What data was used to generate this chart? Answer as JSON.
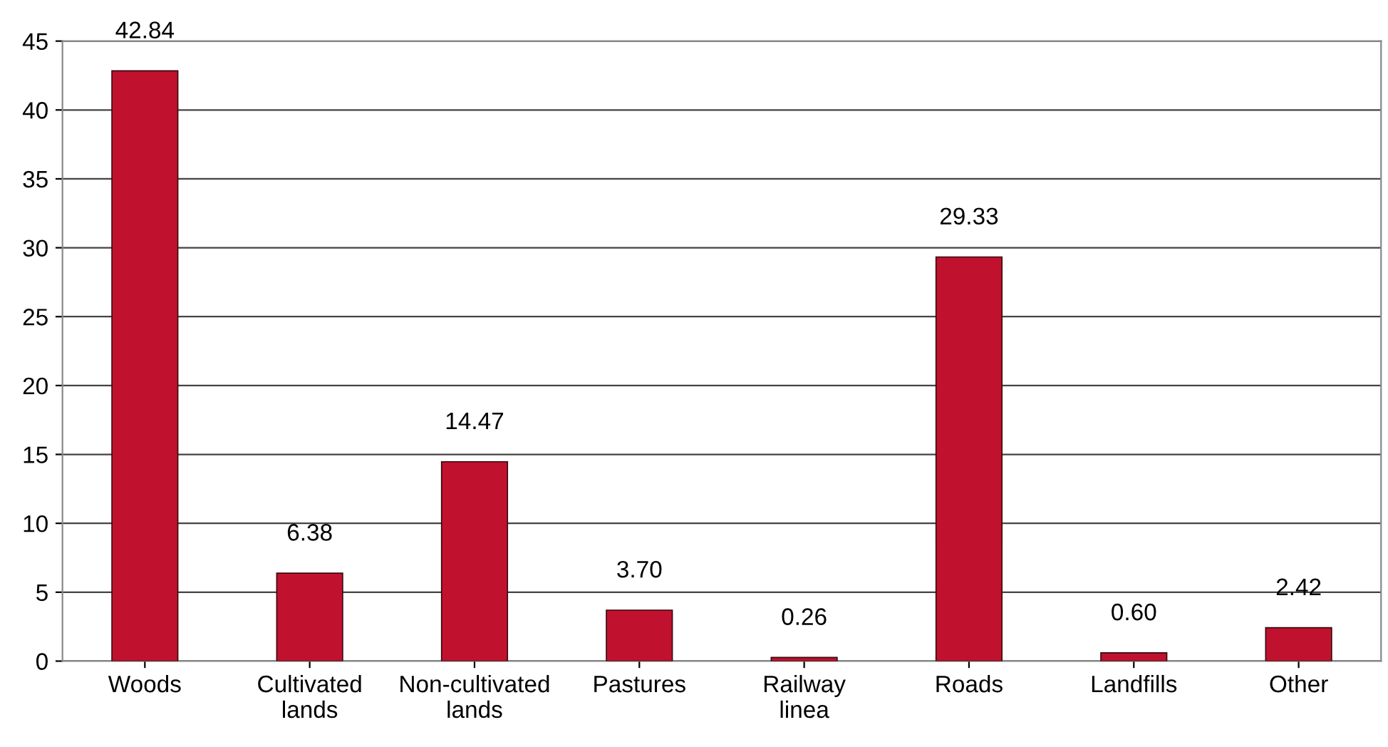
{
  "chart_data": {
    "type": "bar",
    "categories": [
      "Woods",
      "Cultivated\nlands",
      "Non-cultivated\nlands",
      "Pastures",
      "Railway\nlinea",
      "Roads",
      "Landfills",
      "Other"
    ],
    "values": [
      42.84,
      6.38,
      14.47,
      3.7,
      0.26,
      29.33,
      0.6,
      2.42
    ],
    "value_labels": [
      "42.84",
      "6.38",
      "14.47",
      "3.70",
      "0.26",
      "29.33",
      "0.60",
      "2.42"
    ],
    "color": "#c0122e",
    "ylim": [
      0,
      45
    ],
    "yticks": [
      0,
      5,
      10,
      15,
      20,
      25,
      30,
      35,
      40,
      45
    ],
    "grid": "y",
    "legend": false
  }
}
